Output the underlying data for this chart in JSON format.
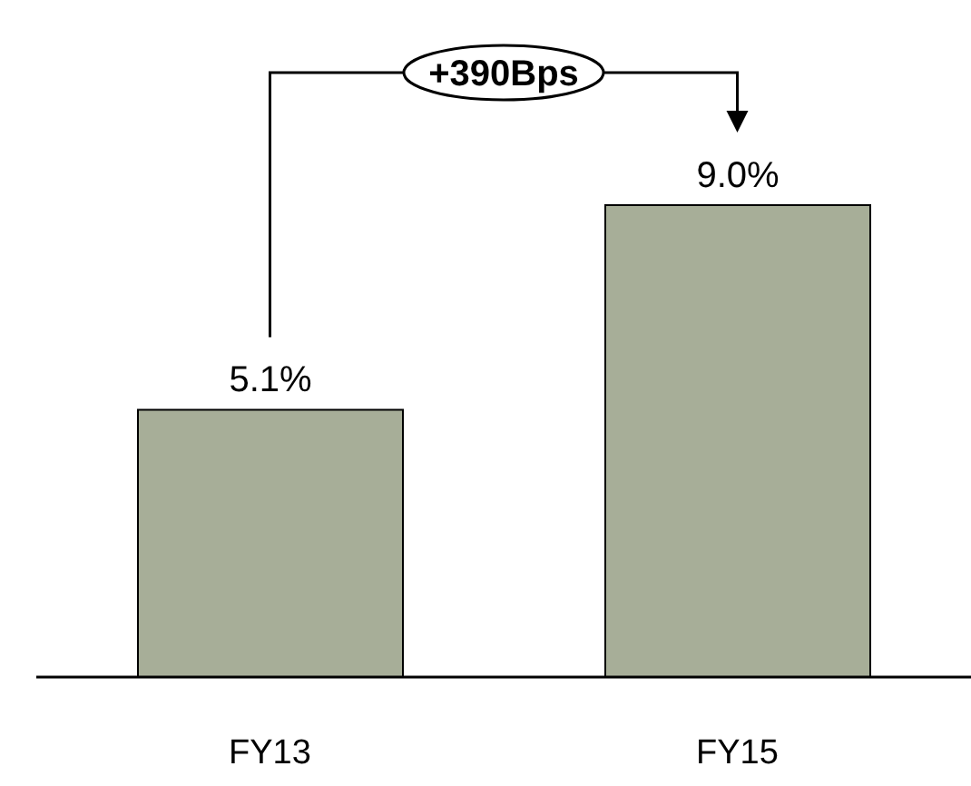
{
  "chart_data": {
    "type": "bar",
    "categories": [
      "FY13",
      "FY15"
    ],
    "values": [
      5.1,
      9.0
    ],
    "value_labels": [
      "5.1%",
      "9.0%"
    ],
    "color": "#a7ae98",
    "annotations": [
      "+390Bps"
    ]
  }
}
